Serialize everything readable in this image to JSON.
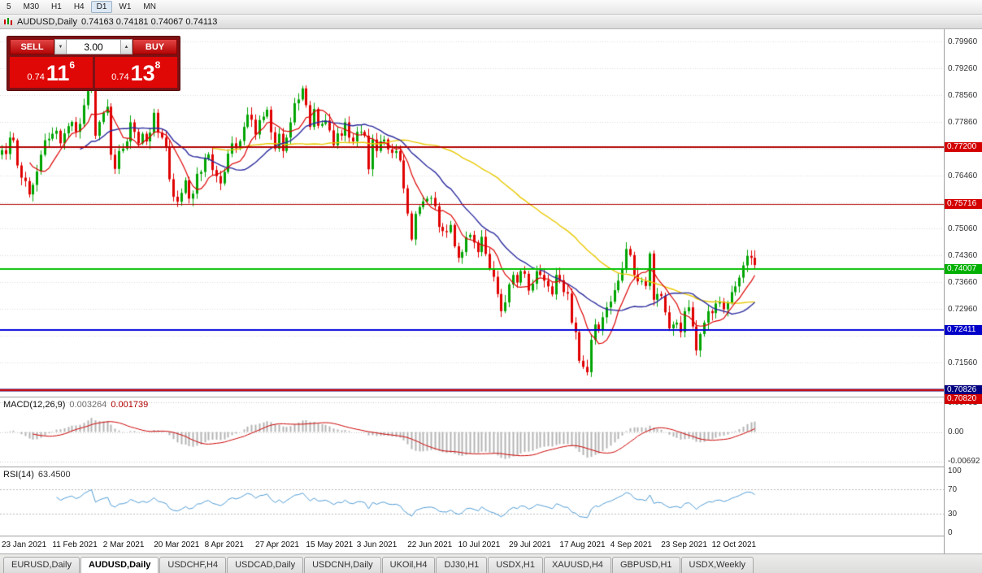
{
  "toolbar": {
    "timeframes": [
      "5",
      "M30",
      "H1",
      "H4",
      "D1",
      "W1",
      "MN"
    ]
  },
  "chart_header": {
    "title": "AUDUSD,Daily",
    "ohlc": "0.74163 0.74181 0.74067 0.74113"
  },
  "trade_panel": {
    "sell_label": "SELL",
    "buy_label": "BUY",
    "volume": "3.00",
    "spin_down_glyph": "▼",
    "spin_up_glyph": "▲",
    "sell_price": {
      "small": "0.74",
      "big": "11",
      "sup": "6"
    },
    "buy_price": {
      "small": "0.74",
      "big": "13",
      "sup": "8"
    }
  },
  "axis": {
    "prices": [
      "0.79960",
      "0.79260",
      "0.78560",
      "0.77860",
      "0.76460",
      "0.75060",
      "0.74360",
      "0.73660",
      "0.72960",
      "0.71560"
    ],
    "grid_start": 0.7086,
    "grid_step": 0.007,
    "grid_count": 14
  },
  "hlines": [
    {
      "price": 0.772,
      "label": "0.77200",
      "color": "#b20000",
      "badge": "#d40000",
      "lw": 2
    },
    {
      "price": 0.75716,
      "label": "0.75716",
      "color": "#b20000",
      "badge": "#d40000",
      "lw": 1
    },
    {
      "price": 0.74007,
      "label": "0.74007",
      "color": "#00c000",
      "badge": "#00b000",
      "lw": 2
    },
    {
      "price": 0.72411,
      "label": "0.72411",
      "color": "#0000d8",
      "badge": "#0000c8",
      "lw": 2
    },
    {
      "price": 0.70826,
      "label": "0.70826",
      "color": "#000080",
      "badge": "#000080",
      "lw": 3
    },
    {
      "price": 0.7082,
      "label": "0.70820",
      "color": "#d00000",
      "badge": "#d40000",
      "lw": 2
    }
  ],
  "macd": {
    "label": "MACD(12,26,9)",
    "value_main": "0.003264",
    "value_signal": "0.001739",
    "axis": [
      "0.00701",
      "0.00",
      "-0.00692"
    ]
  },
  "rsi": {
    "label": "RSI(14)",
    "value": "63.4500",
    "axis": [
      "100",
      "70",
      "30",
      "0"
    ],
    "levels": [
      70,
      30
    ]
  },
  "dates": [
    "23 Jan 2021",
    "11 Feb 2021",
    "2 Mar 2021",
    "20 Mar 2021",
    "8 Apr 2021",
    "27 Apr 2021",
    "15 May 2021",
    "3 Jun 2021",
    "22 Jun 2021",
    "10 Jul 2021",
    "29 Jul 2021",
    "17 Aug 2021",
    "4 Sep 2021",
    "23 Sep 2021",
    "12 Oct 2021"
  ],
  "tabs": [
    "EURUSD,Daily",
    "AUDUSD,Daily",
    "USDCHF,H4",
    "USDCAD,Daily",
    "USDCNH,Daily",
    "UKOil,H4",
    "DJ30,H1",
    "USDX,H1",
    "XAUUSD,H4",
    "GBPUSD,H1",
    "USDX,Weekly"
  ],
  "active_tab": "AUDUSD,Daily",
  "chart_data": {
    "type": "candlestick",
    "symbol": "AUDUSD",
    "timeframe": "Daily",
    "ylim": [
      0.7066,
      0.8029
    ],
    "ma_periods": [
      8,
      21,
      55
    ],
    "ma_colors": [
      "#dd0000",
      "#2b2b9e",
      "#e8c800"
    ],
    "indicators": {
      "macd": {
        "fast": 12,
        "slow": 26,
        "signal": 9
      },
      "rsi": {
        "period": 14
      }
    },
    "closes": [
      0.7712,
      0.7702,
      0.7745,
      0.7738,
      0.7672,
      0.764,
      0.7631,
      0.7596,
      0.7621,
      0.7656,
      0.77,
      0.7738,
      0.7742,
      0.7755,
      0.7763,
      0.773,
      0.7756,
      0.7775,
      0.7786,
      0.776,
      0.7781,
      0.783,
      0.7868,
      0.7895,
      0.775,
      0.7786,
      0.781,
      0.7826,
      0.77,
      0.7663,
      0.771,
      0.7716,
      0.7735,
      0.7785,
      0.776,
      0.773,
      0.7755,
      0.7735,
      0.7758,
      0.781,
      0.7758,
      0.7745,
      0.772,
      0.7636,
      0.759,
      0.7577,
      0.76,
      0.7633,
      0.7585,
      0.7598,
      0.765,
      0.7655,
      0.769,
      0.7701,
      0.766,
      0.7644,
      0.7625,
      0.7655,
      0.7703,
      0.773,
      0.7717,
      0.7736,
      0.7773,
      0.7805,
      0.7792,
      0.7753,
      0.7791,
      0.78,
      0.7818,
      0.7759,
      0.7716,
      0.7755,
      0.771,
      0.7745,
      0.7785,
      0.7835,
      0.7845,
      0.7874,
      0.783,
      0.7773,
      0.782,
      0.7776,
      0.7781,
      0.779,
      0.7764,
      0.7725,
      0.7756,
      0.775,
      0.7785,
      0.7745,
      0.7735,
      0.776,
      0.776,
      0.775,
      0.7662,
      0.774,
      0.771,
      0.7735,
      0.774,
      0.7714,
      0.7705,
      0.771,
      0.7685,
      0.7612,
      0.7546,
      0.7478,
      0.7545,
      0.7563,
      0.7578,
      0.7585,
      0.7587,
      0.7565,
      0.7511,
      0.75,
      0.7497,
      0.7516,
      0.746,
      0.743,
      0.7445,
      0.7484,
      0.749,
      0.747,
      0.7445,
      0.7485,
      0.744,
      0.7402,
      0.738,
      0.7335,
      0.729,
      0.7313,
      0.736,
      0.7385,
      0.7365,
      0.7395,
      0.7388,
      0.7344,
      0.7362,
      0.7395,
      0.7385,
      0.737,
      0.7355,
      0.7334,
      0.7385,
      0.7371,
      0.734,
      0.7336,
      0.726,
      0.7235,
      0.716,
      0.7144,
      0.713,
      0.7215,
      0.7255,
      0.724,
      0.7274,
      0.73,
      0.7315,
      0.7345,
      0.737,
      0.74,
      0.7453,
      0.7437,
      0.7385,
      0.7368,
      0.7369,
      0.7356,
      0.7441,
      0.732,
      0.7335,
      0.733,
      0.7287,
      0.7245,
      0.7255,
      0.726,
      0.7235,
      0.729,
      0.73,
      0.725,
      0.7187,
      0.723,
      0.726,
      0.729,
      0.7285,
      0.731,
      0.7315,
      0.7295,
      0.7312,
      0.734,
      0.7355,
      0.7378,
      0.741,
      0.7435,
      0.743,
      0.7411
    ]
  }
}
